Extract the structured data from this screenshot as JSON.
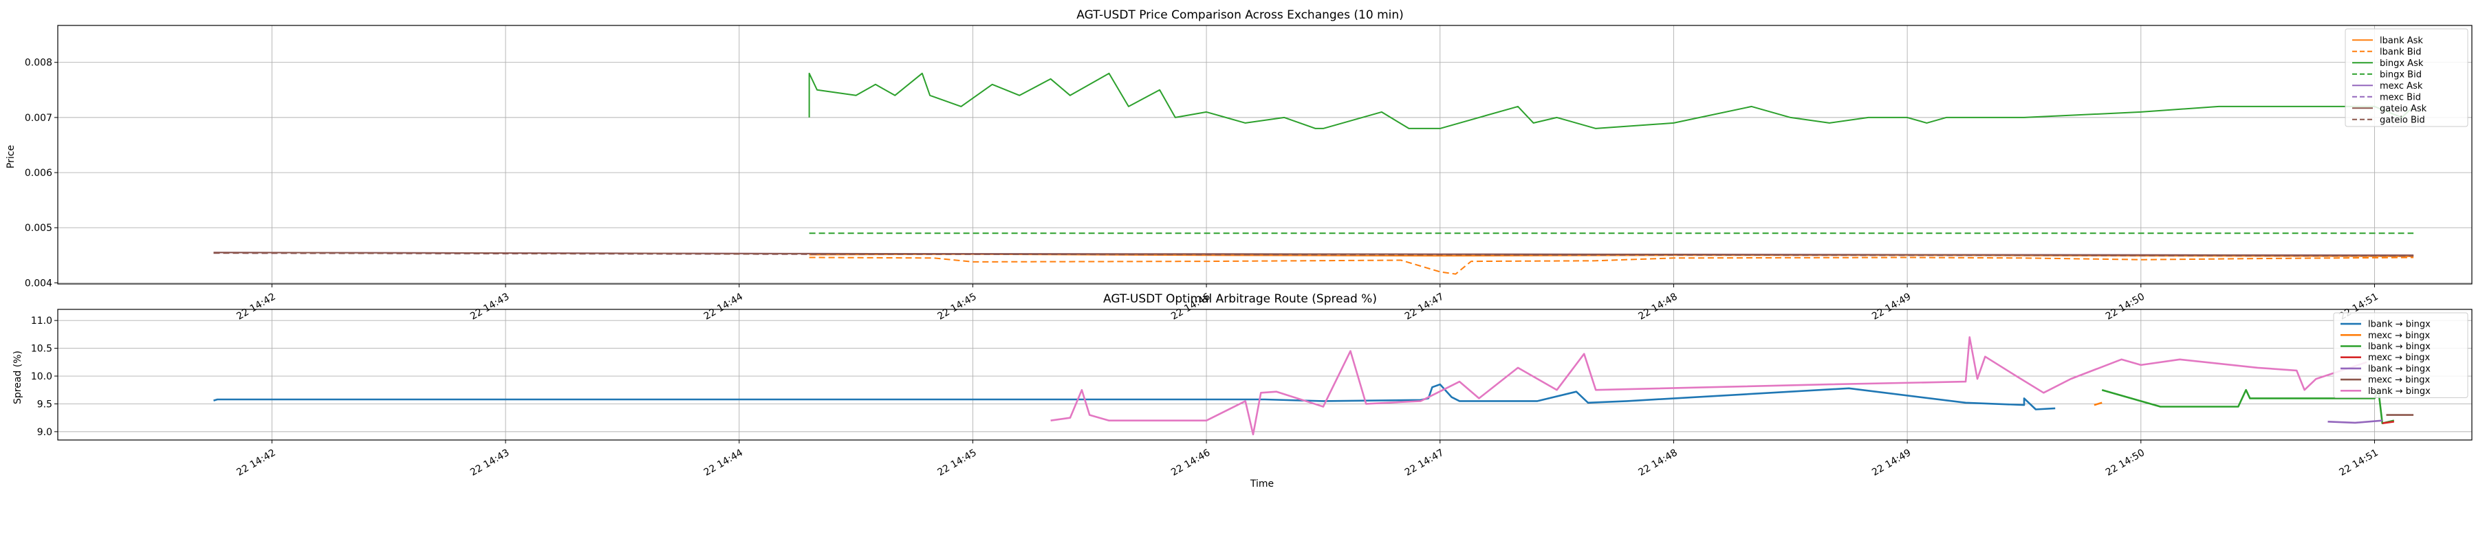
{
  "chart_data": [
    {
      "type": "line",
      "title": "AGT-USDT Price Comparison Across Exchanges (10 min)",
      "xlabel": "",
      "ylabel": "Price",
      "ylim": [
        0.00398,
        0.00867
      ],
      "xlim": [
        "14:41:05",
        "14:51:25"
      ],
      "x_ticks": [
        "22 14:42",
        "22 14:43",
        "22 14:44",
        "22 14:45",
        "22 14:46",
        "22 14:47",
        "22 14:48",
        "22 14:49",
        "22 14:50",
        "22 14:51"
      ],
      "y_ticks": [
        "0.004",
        "0.005",
        "0.006",
        "0.007",
        "0.008"
      ],
      "grid": true,
      "legend_position": "top-right",
      "series": [
        {
          "name": "lbank Ask",
          "color": "#ff7f0e",
          "dash": "solid",
          "points": [
            [
              "14:44:18",
              0.00451
            ],
            [
              "14:45:00",
              0.00452
            ],
            [
              "14:46:00",
              0.0045
            ],
            [
              "14:47:00",
              0.00449
            ],
            [
              "14:48:00",
              0.0045
            ],
            [
              "14:49:00",
              0.0045
            ],
            [
              "14:50:00",
              0.00449
            ],
            [
              "14:51:10",
              0.00448
            ]
          ]
        },
        {
          "name": "lbank Bid",
          "color": "#ff7f0e",
          "dash": "dashed",
          "points": [
            [
              "14:44:18",
              0.00446
            ],
            [
              "14:44:50",
              0.00445
            ],
            [
              "14:45:00",
              0.00438
            ],
            [
              "14:46:00",
              0.00439
            ],
            [
              "14:46:50",
              0.00441
            ],
            [
              "14:47:00",
              0.0042
            ],
            [
              "14:47:04",
              0.00416
            ],
            [
              "14:47:08",
              0.00439
            ],
            [
              "14:47:40",
              0.0044
            ],
            [
              "14:48:00",
              0.00445
            ],
            [
              "14:49:00",
              0.00446
            ],
            [
              "14:49:30",
              0.00445
            ],
            [
              "14:50:00",
              0.00442
            ],
            [
              "14:50:30",
              0.00444
            ],
            [
              "14:51:10",
              0.00446
            ]
          ]
        },
        {
          "name": "bingx Ask",
          "color": "#2ca02c",
          "dash": "solid",
          "points": [
            [
              "14:44:18",
              0.007
            ],
            [
              "14:44:18",
              0.0078
            ],
            [
              "14:44:20",
              0.0075
            ],
            [
              "14:44:30",
              0.0074
            ],
            [
              "14:44:35",
              0.0076
            ],
            [
              "14:44:40",
              0.0074
            ],
            [
              "14:44:47",
              0.0078
            ],
            [
              "14:44:49",
              0.0074
            ],
            [
              "14:44:57",
              0.0072
            ],
            [
              "14:45:05",
              0.0076
            ],
            [
              "14:45:12",
              0.0074
            ],
            [
              "14:45:20",
              0.0077
            ],
            [
              "14:45:25",
              0.0074
            ],
            [
              "14:45:35",
              0.0078
            ],
            [
              "14:45:40",
              0.0072
            ],
            [
              "14:45:48",
              0.0075
            ],
            [
              "14:45:52",
              0.007
            ],
            [
              "14:46:00",
              0.0071
            ],
            [
              "14:46:10",
              0.0069
            ],
            [
              "14:46:20",
              0.007
            ],
            [
              "14:46:28",
              0.0068
            ],
            [
              "14:46:30",
              0.0068
            ],
            [
              "14:46:35",
              0.0069
            ],
            [
              "14:46:40",
              0.007
            ],
            [
              "14:46:45",
              0.0071
            ],
            [
              "14:46:52",
              0.0068
            ],
            [
              "14:47:00",
              0.0068
            ],
            [
              "14:47:10",
              0.007
            ],
            [
              "14:47:20",
              0.0072
            ],
            [
              "14:47:24",
              0.0069
            ],
            [
              "14:47:30",
              0.007
            ],
            [
              "14:47:40",
              0.0068
            ],
            [
              "14:48:00",
              0.0069
            ],
            [
              "14:48:20",
              0.0072
            ],
            [
              "14:48:30",
              0.007
            ],
            [
              "14:48:40",
              0.0069
            ],
            [
              "14:48:50",
              0.007
            ],
            [
              "14:49:00",
              0.007
            ],
            [
              "14:49:05",
              0.0069
            ],
            [
              "14:49:10",
              0.007
            ],
            [
              "14:49:30",
              0.007
            ],
            [
              "14:50:00",
              0.0071
            ],
            [
              "14:50:20",
              0.0072
            ],
            [
              "14:50:30",
              0.0072
            ],
            [
              "14:51:00",
              0.0072
            ],
            [
              "14:51:07",
              0.007
            ],
            [
              "14:51:10",
              0.0072
            ]
          ]
        },
        {
          "name": "bingx Bid",
          "color": "#2ca02c",
          "dash": "dashed",
          "points": [
            [
              "14:44:18",
              0.0049
            ],
            [
              "14:51:10",
              0.0049
            ]
          ]
        },
        {
          "name": "mexc Ask",
          "color": "#9467bd",
          "dash": "solid",
          "points": [
            [
              "14:41:45",
              0.00455
            ],
            [
              "14:44:18",
              0.00453
            ],
            [
              "14:47:00",
              0.00452
            ],
            [
              "14:51:10",
              0.0045
            ]
          ]
        },
        {
          "name": "mexc Bid",
          "color": "#9467bd",
          "dash": "dashed",
          "points": [
            [
              "14:41:45",
              0.00454
            ],
            [
              "14:44:18",
              0.00452
            ],
            [
              "14:47:00",
              0.00451
            ],
            [
              "14:51:10",
              0.00449
            ]
          ]
        },
        {
          "name": "gateio Ask",
          "color": "#8c564b",
          "dash": "solid",
          "points": [
            [
              "14:41:45",
              0.00455
            ],
            [
              "14:44:18",
              0.00453
            ],
            [
              "14:47:00",
              0.00452
            ],
            [
              "14:51:10",
              0.0045
            ]
          ]
        },
        {
          "name": "gateio Bid",
          "color": "#8c564b",
          "dash": "dashed",
          "points": [
            [
              "14:41:45",
              0.00454
            ],
            [
              "14:44:18",
              0.00452
            ],
            [
              "14:47:00",
              0.00451
            ],
            [
              "14:51:10",
              0.00449
            ]
          ]
        }
      ]
    },
    {
      "type": "line",
      "title": "AGT-USDT Optimal Arbitrage Route (Spread %)",
      "xlabel": "Time",
      "ylabel": "Spread (%)",
      "ylim": [
        8.85,
        11.2
      ],
      "xlim": [
        "14:41:05",
        "14:51:25"
      ],
      "x_ticks": [
        "22 14:42",
        "22 14:43",
        "22 14:44",
        "22 14:45",
        "22 14:46",
        "22 14:47",
        "22 14:48",
        "22 14:49",
        "22 14:50",
        "22 14:51"
      ],
      "y_ticks": [
        "9.0",
        "9.5",
        "10.0",
        "10.5",
        "11.0"
      ],
      "grid": true,
      "legend_position": "top-right",
      "series": [
        {
          "name": "lbank → bingx",
          "color": "#1f77b4",
          "points": [
            [
              "14:41:45",
              9.56
            ],
            [
              "14:41:46",
              9.58
            ],
            [
              "14:46:15",
              9.58
            ],
            [
              "14:46:30",
              9.55
            ],
            [
              "14:46:55",
              9.57
            ],
            [
              "14:46:57",
              9.6
            ],
            [
              "14:46:58",
              9.8
            ],
            [
              "14:47:00",
              9.85
            ],
            [
              "14:47:03",
              9.62
            ],
            [
              "14:47:05",
              9.55
            ],
            [
              "14:47:25",
              9.55
            ],
            [
              "14:47:35",
              9.72
            ],
            [
              "14:47:38",
              9.52
            ],
            [
              "14:47:48",
              9.55
            ],
            [
              "14:48:45",
              9.78
            ],
            [
              "14:49:15",
              9.52
            ],
            [
              "14:49:30",
              9.48
            ],
            [
              "14:49:30",
              9.6
            ],
            [
              "14:49:33",
              9.4
            ],
            [
              "14:49:38",
              9.42
            ]
          ]
        },
        {
          "name": "mexc → bingx",
          "color": "#ff7f0e",
          "points": [
            [
              "14:49:48",
              9.48
            ],
            [
              "14:49:50",
              9.52
            ]
          ]
        },
        {
          "name": "lbank → bingx",
          "color": "#2ca02c",
          "points": [
            [
              "14:49:50",
              9.75
            ],
            [
              "14:50:05",
              9.45
            ],
            [
              "14:50:25",
              9.45
            ],
            [
              "14:50:27",
              9.75
            ],
            [
              "14:50:28",
              9.6
            ],
            [
              "14:51:00",
              9.6
            ],
            [
              "14:51:01",
              9.75
            ],
            [
              "14:51:02",
              9.15
            ],
            [
              "14:51:05",
              9.2
            ]
          ]
        },
        {
          "name": "mexc → bingx",
          "color": "#d62728",
          "points": [
            [
              "14:51:02",
              9.15
            ],
            [
              "14:51:05",
              9.18
            ]
          ]
        },
        {
          "name": "lbank → bingx",
          "color": "#9467bd",
          "points": [
            [
              "14:50:48",
              9.18
            ],
            [
              "14:50:55",
              9.16
            ],
            [
              "14:51:02",
              9.2
            ]
          ]
        },
        {
          "name": "mexc → bingx",
          "color": "#8c564b",
          "points": [
            [
              "14:51:03",
              9.3
            ],
            [
              "14:51:10",
              9.3
            ]
          ]
        },
        {
          "name": "lbank → bingx",
          "color": "#e377c2",
          "points": [
            [
              "14:45:20",
              9.2
            ],
            [
              "14:45:25",
              9.25
            ],
            [
              "14:45:28",
              9.75
            ],
            [
              "14:45:30",
              9.3
            ],
            [
              "14:45:35",
              9.2
            ],
            [
              "14:46:00",
              9.2
            ],
            [
              "14:46:10",
              9.55
            ],
            [
              "14:46:12",
              8.95
            ],
            [
              "14:46:14",
              9.7
            ],
            [
              "14:46:18",
              9.72
            ],
            [
              "14:46:30",
              9.45
            ],
            [
              "14:46:37",
              10.45
            ],
            [
              "14:46:41",
              9.5
            ],
            [
              "14:46:55",
              9.55
            ],
            [
              "14:47:05",
              9.9
            ],
            [
              "14:47:10",
              9.6
            ],
            [
              "14:47:20",
              10.15
            ],
            [
              "14:47:30",
              9.75
            ],
            [
              "14:47:37",
              10.4
            ],
            [
              "14:47:40",
              9.75
            ],
            [
              "14:48:40",
              9.85
            ],
            [
              "14:49:15",
              9.9
            ],
            [
              "14:49:16",
              10.7
            ],
            [
              "14:49:18",
              9.95
            ],
            [
              "14:49:20",
              10.35
            ],
            [
              "14:49:28",
              10.0
            ],
            [
              "14:49:35",
              9.7
            ],
            [
              "14:49:42",
              9.95
            ],
            [
              "14:49:55",
              10.3
            ],
            [
              "14:50:00",
              10.2
            ],
            [
              "14:50:10",
              10.3
            ],
            [
              "14:50:30",
              10.15
            ],
            [
              "14:50:40",
              10.1
            ],
            [
              "14:50:42",
              9.75
            ],
            [
              "14:50:45",
              9.95
            ],
            [
              "14:50:58",
              10.25
            ]
          ]
        }
      ]
    }
  ]
}
